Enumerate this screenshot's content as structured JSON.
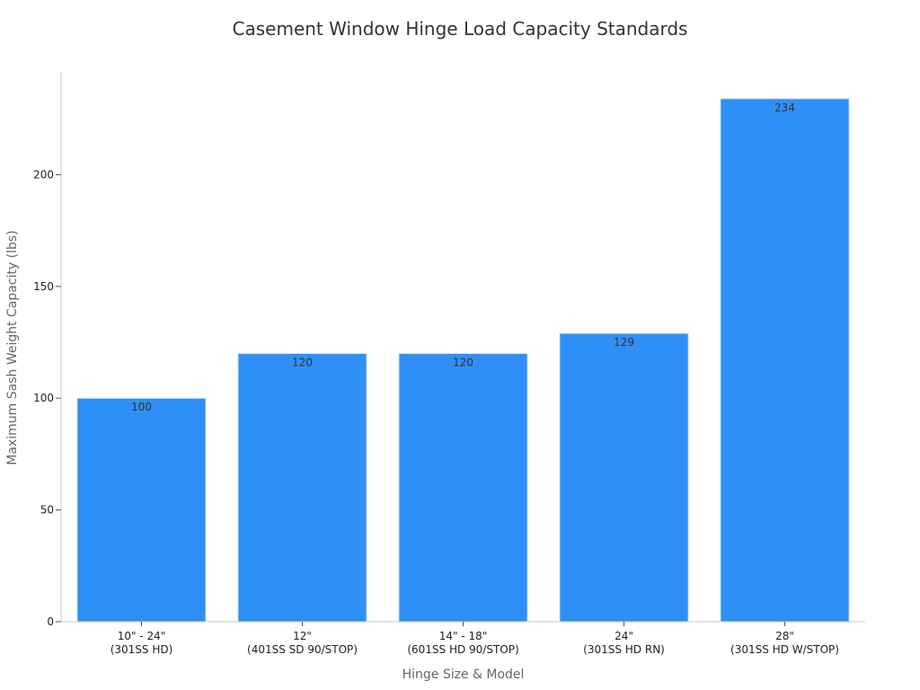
{
  "chart_data": {
    "type": "bar",
    "title": "Casement Window Hinge Load Capacity Standards",
    "xlabel": "Hinge Size & Model",
    "ylabel": "Maximum Sash Weight Capacity (lbs)",
    "categories": [
      [
        "10\" - 24\"",
        "(301SS HD)"
      ],
      [
        "12\"",
        "(401SS SD 90/STOP)"
      ],
      [
        "14\" - 18\"",
        "(601SS HD 90/STOP)"
      ],
      [
        "24\"",
        "(301SS HD RN)"
      ],
      [
        "28\"",
        "(301SS HD W/STOP)"
      ]
    ],
    "values": [
      100,
      120,
      120,
      129,
      234
    ],
    "data_labels": [
      "100",
      "120",
      "120",
      "129",
      "234"
    ],
    "ylim": [
      0,
      246
    ],
    "yticks": [
      0,
      50,
      100,
      150,
      200
    ],
    "grid": false,
    "colors": {
      "bar": "#2e90f6",
      "bar_edge": "#d8e6f5",
      "axis": "#cccccc"
    }
  }
}
